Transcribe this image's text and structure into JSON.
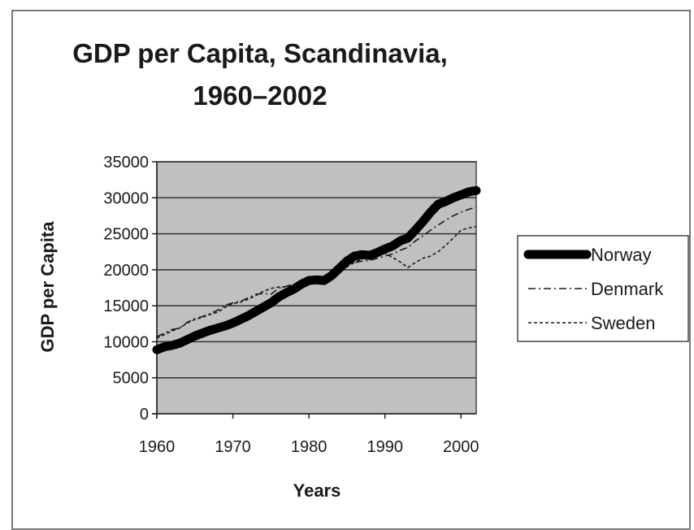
{
  "chart_data": {
    "type": "line",
    "title": "GDP per Capita, Scandinavia, 1960–2002",
    "xlabel": "Years",
    "ylabel": "GDP per Capita",
    "xlim": [
      1960,
      2002
    ],
    "ylim": [
      0,
      35000
    ],
    "xticks": [
      1960,
      1970,
      1980,
      1990,
      2000
    ],
    "yticks": [
      0,
      5000,
      10000,
      15000,
      20000,
      25000,
      30000,
      35000
    ],
    "grid": true,
    "legend_position": "right",
    "x": [
      1960,
      1961,
      1962,
      1963,
      1964,
      1965,
      1966,
      1967,
      1968,
      1969,
      1970,
      1971,
      1972,
      1973,
      1974,
      1975,
      1976,
      1977,
      1978,
      1979,
      1980,
      1981,
      1982,
      1983,
      1984,
      1985,
      1986,
      1987,
      1988,
      1989,
      1990,
      1991,
      1992,
      1993,
      1994,
      1995,
      1996,
      1997,
      1998,
      1999,
      2000,
      2001,
      2002
    ],
    "series": [
      {
        "name": "Norway",
        "style": "thick-solid",
        "color": "#000000",
        "values": [
          8900,
          9300,
          9500,
          9800,
          10300,
          10800,
          11200,
          11600,
          11900,
          12200,
          12600,
          13100,
          13600,
          14200,
          14800,
          15400,
          16200,
          16800,
          17300,
          18000,
          18500,
          18600,
          18500,
          19200,
          20200,
          21200,
          21900,
          22100,
          22000,
          22400,
          22900,
          23300,
          24000,
          24400,
          25500,
          26700,
          28000,
          29100,
          29500,
          30000,
          30400,
          30800,
          31000
        ]
      },
      {
        "name": "Denmark",
        "style": "dash-dot",
        "color": "#1a1a1a",
        "values": [
          10700,
          11200,
          11700,
          11900,
          12700,
          13200,
          13500,
          13900,
          14400,
          15100,
          15400,
          15600,
          16100,
          16600,
          16700,
          16600,
          17400,
          17700,
          18000,
          18300,
          18400,
          18300,
          18700,
          19200,
          19800,
          20400,
          21000,
          21200,
          21300,
          21600,
          21900,
          22200,
          22700,
          23100,
          24000,
          24700,
          25500,
          26200,
          26900,
          27500,
          28000,
          28400,
          28700
        ]
      },
      {
        "name": "Sweden",
        "style": "dotted",
        "color": "#1a1a1a",
        "values": [
          10500,
          11000,
          11500,
          11900,
          12600,
          13100,
          13400,
          13800,
          14100,
          14800,
          15300,
          15500,
          15900,
          16400,
          17000,
          17400,
          17600,
          17600,
          17800,
          18400,
          18700,
          18800,
          19100,
          19500,
          20000,
          20500,
          21000,
          21500,
          22000,
          22300,
          22300,
          21700,
          21100,
          20300,
          21000,
          21600,
          21900,
          22500,
          23400,
          24400,
          25500,
          25800,
          26000
        ]
      }
    ]
  }
}
